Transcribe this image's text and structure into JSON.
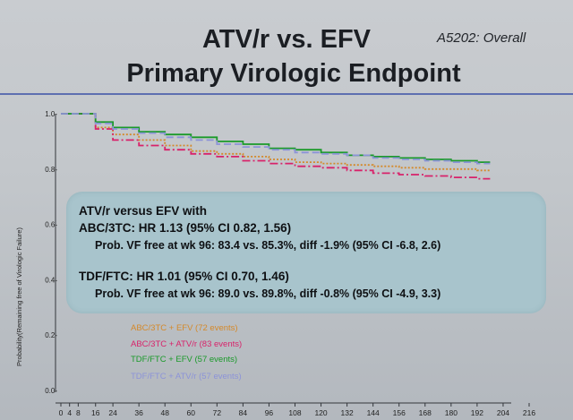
{
  "slide": {
    "study_tag": "A5202:  Overall",
    "title_line1": "ATV/r vs. EFV",
    "title_line2": "Primary Virologic Endpoint"
  },
  "colors": {
    "abc_efv": "#d4892a",
    "abc_atv": "#d8226a",
    "tdf_efv": "#1a9a2a",
    "tdf_atv": "#8c93d8",
    "box_bg": "#a8c4cc",
    "rule": "#5e6fb0"
  },
  "infobox": {
    "heading": "ATV/r versus EFV with",
    "abc_hr": "ABC/3TC:  HR 1.13 (95% CI 0.82, 1.56)",
    "abc_prob": "Prob. VF free at wk 96:  83.4 vs. 85.3%, diff -1.9% (95% CI -6.8, 2.6)",
    "tdf_hr": "TDF/FTC:  HR 1.01 (95% CI 0.70, 1.46)",
    "tdf_prob": "Prob. VF free at wk 96:  89.0 vs. 89.8%, diff -0.8% (95% CI -4.9, 3.3)"
  },
  "chart_data": {
    "type": "line",
    "ylabel": "Probability(Remaining free of Virologic Failure)",
    "xlabel": "",
    "ylim": [
      0.0,
      1.0
    ],
    "xlim": [
      0,
      216
    ],
    "yticks": [
      "0.0-",
      "0.2-",
      "0.4-",
      "0.6-",
      "0.8-",
      "1.0-"
    ],
    "ytick_values": [
      0.0,
      0.2,
      0.4,
      0.6,
      0.8,
      1.0
    ],
    "xticks": [
      "0",
      "4",
      "8",
      "16",
      "24",
      "36",
      "48",
      "60",
      "72",
      "84",
      "96",
      "108",
      "120",
      "132",
      "144",
      "156",
      "168",
      "180",
      "192",
      "204",
      "216"
    ],
    "xtick_values": [
      0,
      4,
      8,
      16,
      24,
      36,
      48,
      60,
      72,
      84,
      96,
      108,
      120,
      132,
      144,
      156,
      168,
      180,
      192,
      204,
      216
    ],
    "legend_position": "bottom-left",
    "grid": false,
    "series": [
      {
        "name": "ABC/3TC + EFV (72 events)",
        "key": "abc_efv",
        "dash": "2,2",
        "x": [
          0,
          16,
          24,
          36,
          48,
          60,
          72,
          84,
          96,
          108,
          120,
          132,
          144,
          156,
          168,
          180,
          192,
          198
        ],
        "y": [
          1.0,
          0.95,
          0.925,
          0.905,
          0.885,
          0.865,
          0.855,
          0.845,
          0.835,
          0.825,
          0.82,
          0.815,
          0.81,
          0.805,
          0.8,
          0.8,
          0.795,
          0.795
        ]
      },
      {
        "name": "ABC/3TC + ATV/r (83 events)",
        "key": "abc_atv",
        "dash": "9,3,2,3",
        "x": [
          0,
          16,
          24,
          36,
          48,
          60,
          72,
          84,
          96,
          108,
          120,
          132,
          144,
          156,
          168,
          180,
          192,
          198
        ],
        "y": [
          1.0,
          0.945,
          0.905,
          0.885,
          0.87,
          0.855,
          0.845,
          0.83,
          0.82,
          0.81,
          0.805,
          0.795,
          0.785,
          0.78,
          0.775,
          0.77,
          0.765,
          0.765
        ]
      },
      {
        "name": "TDF/FTC + EFV (57 events)",
        "key": "tdf_efv",
        "dash": "",
        "x": [
          0,
          16,
          24,
          36,
          48,
          60,
          72,
          84,
          96,
          108,
          120,
          132,
          144,
          156,
          168,
          180,
          192,
          198
        ],
        "y": [
          1.0,
          0.97,
          0.95,
          0.935,
          0.925,
          0.915,
          0.9,
          0.89,
          0.875,
          0.87,
          0.86,
          0.85,
          0.845,
          0.84,
          0.835,
          0.83,
          0.825,
          0.825
        ]
      },
      {
        "name": "TDF/FTC + ATV/r (57 events)",
        "key": "tdf_atv",
        "dash": "8,4",
        "x": [
          0,
          16,
          24,
          36,
          48,
          60,
          72,
          84,
          96,
          108,
          120,
          132,
          144,
          156,
          168,
          180,
          192,
          198
        ],
        "y": [
          1.0,
          0.965,
          0.945,
          0.93,
          0.915,
          0.905,
          0.89,
          0.88,
          0.87,
          0.86,
          0.855,
          0.85,
          0.84,
          0.835,
          0.83,
          0.825,
          0.82,
          0.82
        ]
      }
    ]
  }
}
